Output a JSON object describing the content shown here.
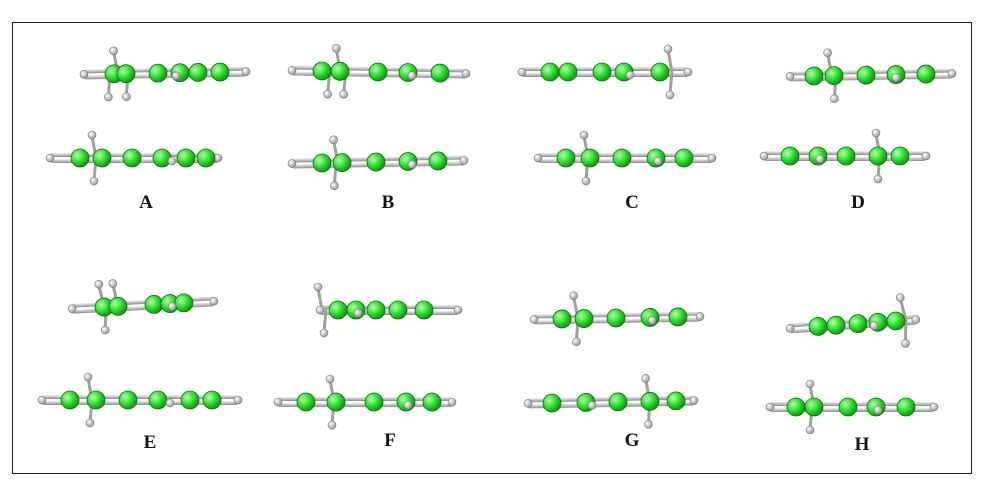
{
  "figure": {
    "panels": [
      {
        "label": "A"
      },
      {
        "label": "B"
      },
      {
        "label": "C"
      },
      {
        "label": "D"
      },
      {
        "label": "E"
      },
      {
        "label": "F"
      },
      {
        "label": "G"
      },
      {
        "label": "H"
      }
    ],
    "colors": {
      "carbon": "#2ee02e",
      "carbon_dark": "#159915",
      "hydrogen": "#ffffff",
      "bond": "#cfcfcf",
      "frame": "#222222"
    }
  }
}
